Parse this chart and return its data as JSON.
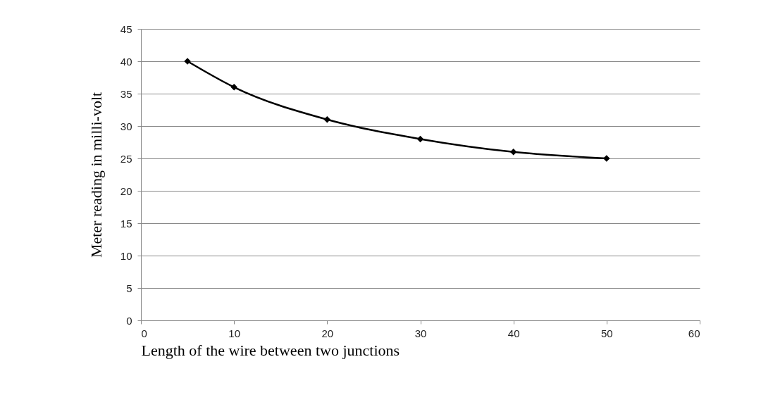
{
  "chart_data": {
    "type": "line",
    "xlabel": "Length of the wire between two junctions",
    "ylabel": "Meter reading in milli-volt",
    "x": [
      5,
      10,
      20,
      30,
      40,
      50
    ],
    "series": [
      {
        "color": "#000000",
        "values": [
          40,
          36,
          31,
          28,
          26,
          25
        ]
      }
    ],
    "xlim": [
      0,
      60
    ],
    "xticks": [
      0,
      10,
      20,
      30,
      40,
      50,
      60
    ],
    "ylim": [
      0,
      45
    ],
    "yticks": [
      0,
      5,
      10,
      15,
      20,
      25,
      30,
      35,
      40,
      45
    ],
    "grid": "y",
    "marker": "diamond",
    "line_style": "solid",
    "legend": false
  }
}
